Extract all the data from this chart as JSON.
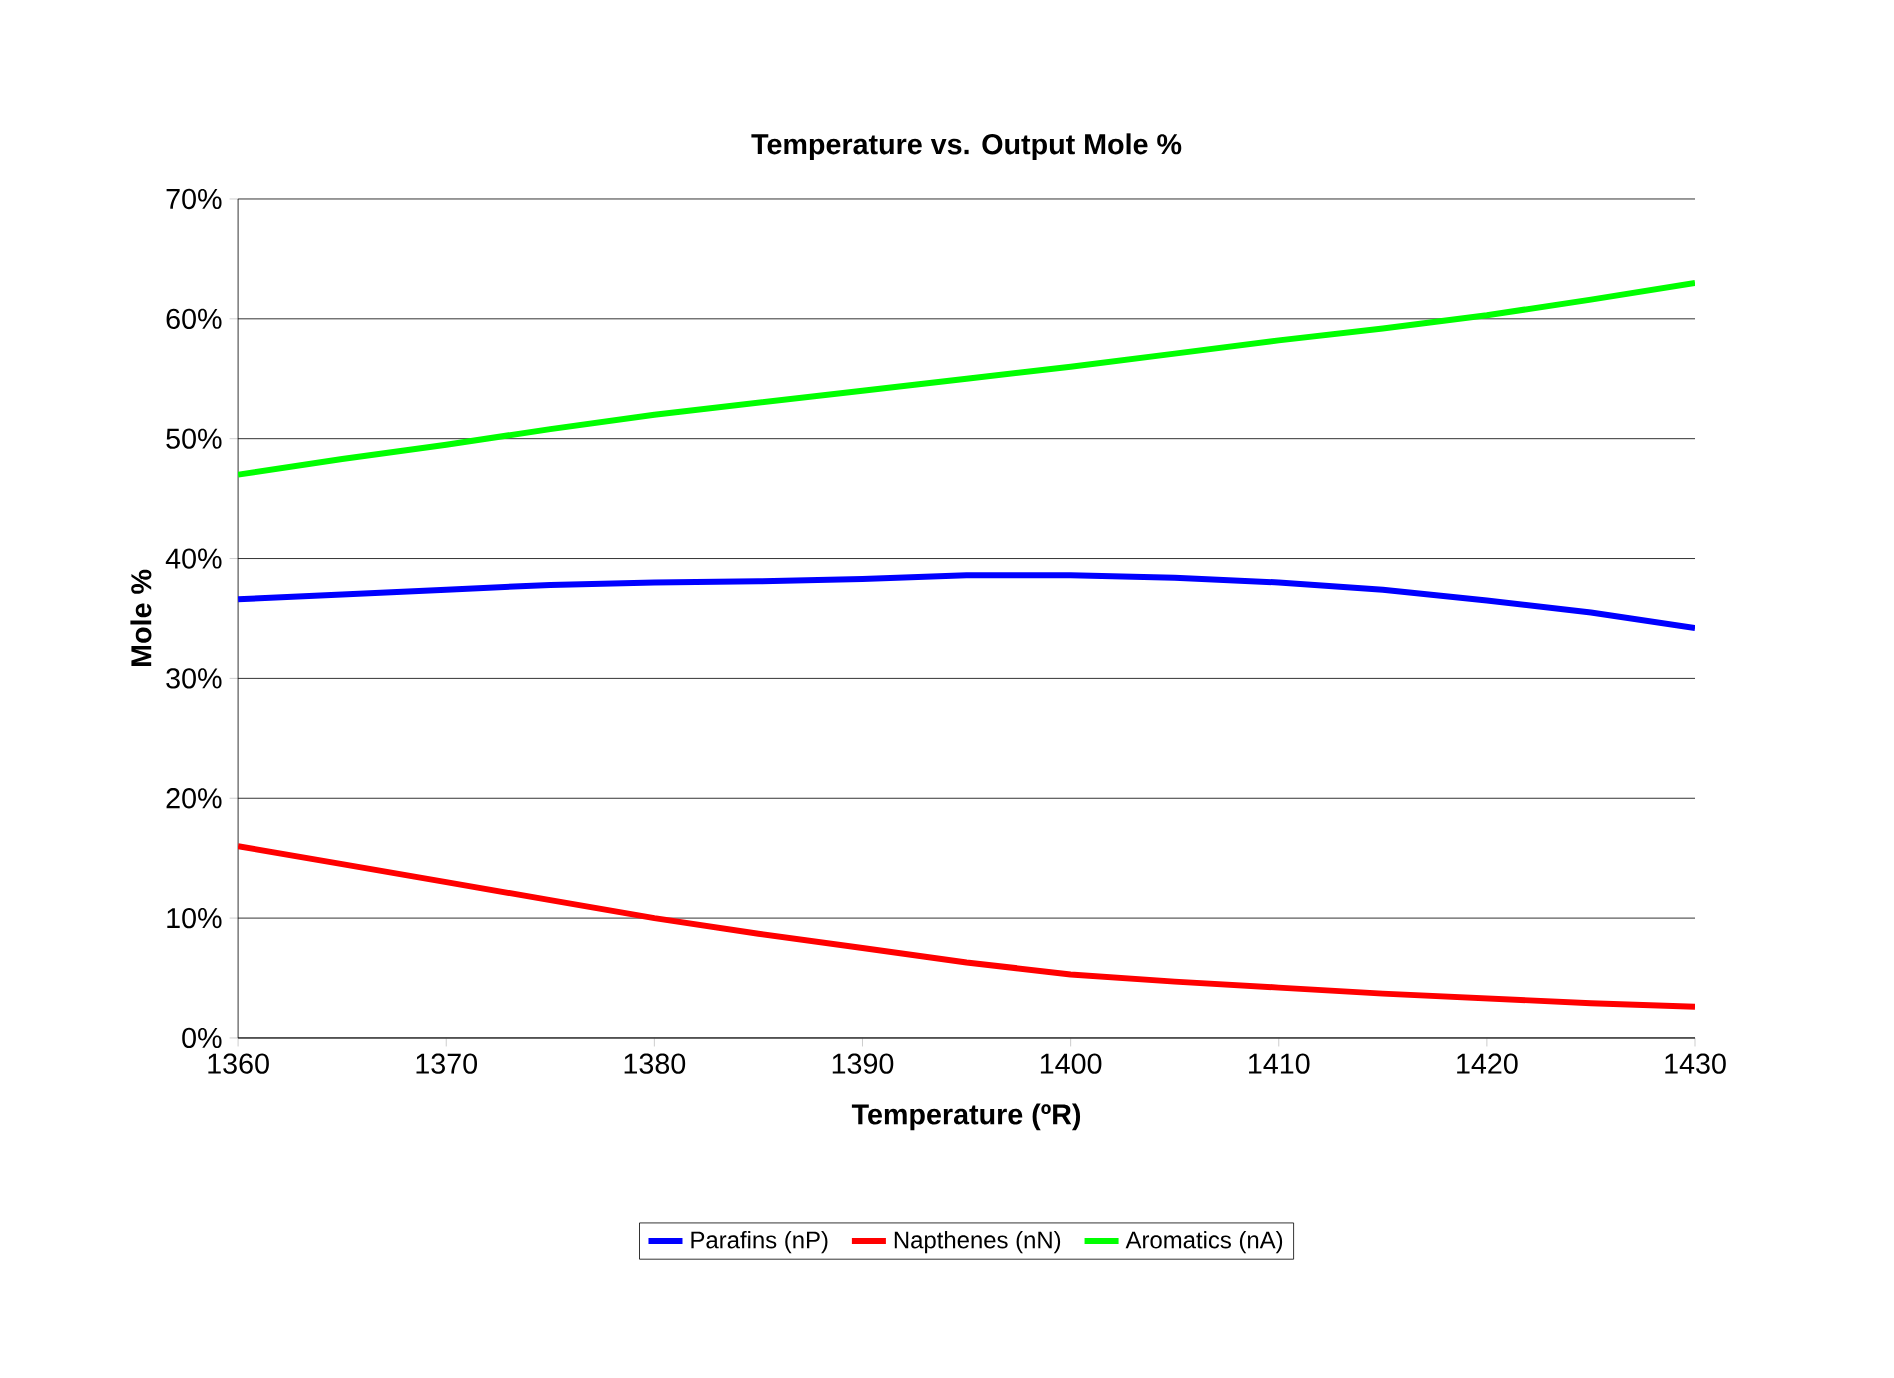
{
  "chart_data": {
    "type": "line",
    "title": "Temperature vs. Output Mole %",
    "xlabel": "Temperature (ºR)",
    "ylabel": "Mole %",
    "x": [
      1360,
      1365,
      1370,
      1375,
      1380,
      1385,
      1390,
      1395,
      1400,
      1405,
      1410,
      1415,
      1420,
      1425,
      1430
    ],
    "series": [
      {
        "name": "Parafins (nP)",
        "color": "#0000ff",
        "values": [
          36.6,
          37.0,
          37.4,
          37.8,
          38.0,
          38.1,
          38.3,
          38.6,
          38.6,
          38.4,
          38.0,
          37.4,
          36.5,
          35.5,
          34.2
        ]
      },
      {
        "name": "Napthenes (nN)",
        "color": "#ff0000",
        "values": [
          16.0,
          14.5,
          13.0,
          11.5,
          10.0,
          8.7,
          7.5,
          6.3,
          5.3,
          4.7,
          4.2,
          3.7,
          3.3,
          2.9,
          2.6
        ]
      },
      {
        "name": "Aromatics (nA)",
        "color": "#00ff00",
        "values": [
          47.0,
          48.3,
          49.5,
          50.8,
          52.0,
          53.0,
          54.0,
          55.0,
          56.0,
          57.1,
          58.2,
          59.2,
          60.3,
          61.6,
          63.0
        ]
      }
    ],
    "xlim": [
      1360,
      1430
    ],
    "xticks": [
      1360,
      1370,
      1380,
      1390,
      1400,
      1410,
      1420,
      1430
    ],
    "ylim": [
      0,
      70
    ],
    "yticks": [
      {
        "value": 0,
        "label": "0%"
      },
      {
        "value": 10,
        "label": "10%"
      },
      {
        "value": 20,
        "label": "20%"
      },
      {
        "value": 30,
        "label": "30%"
      },
      {
        "value": 40,
        "label": "40%"
      },
      {
        "value": 50,
        "label": "50%"
      },
      {
        "value": 60,
        "label": "60%"
      },
      {
        "value": 70,
        "label": "70%"
      }
    ],
    "grid": "y",
    "legend": "bottom",
    "marker": "none",
    "line_style": "solid"
  }
}
